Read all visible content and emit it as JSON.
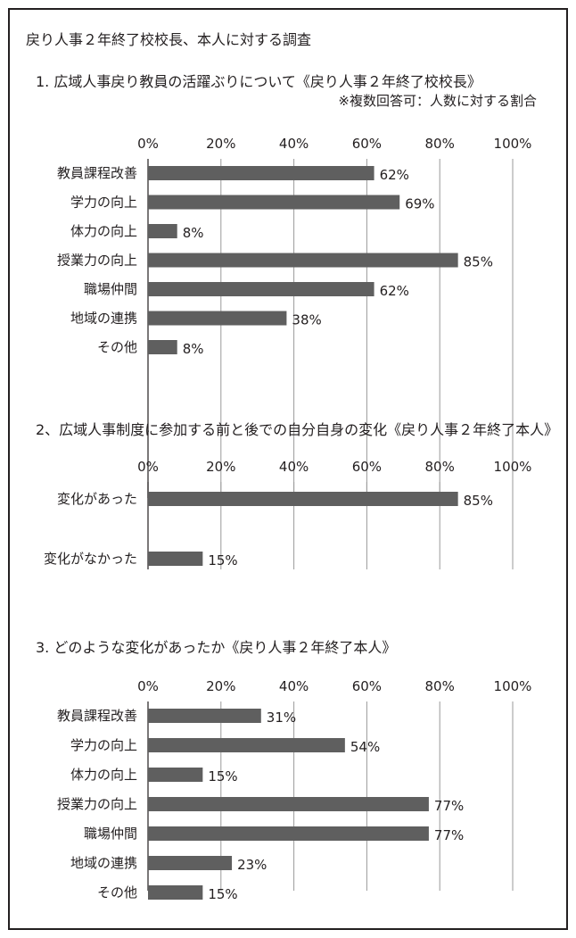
{
  "page_title": "戻り人事２年終了校校長、本人に対する調査",
  "sections": [
    {
      "title": "1. 広域人事戻り教員の活躍ぶりについて《戻り人事２年終了校校長》",
      "note": "※複数回答可：人数に対する割合"
    },
    {
      "title": "2、広域人事制度に参加する前と後での自分自身の変化《戻り人事２年終了本人》"
    },
    {
      "title": "3. どのような変化があったか《戻り人事２年終了本人》"
    }
  ],
  "chart_data": [
    {
      "type": "bar",
      "orientation": "horizontal",
      "x_ticks": [
        "0%",
        "20%",
        "40%",
        "60%",
        "80%",
        "100%"
      ],
      "xlim": [
        0,
        100
      ],
      "categories": [
        "教員課程改善",
        "学力の向上",
        "体力の向上",
        "授業力の向上",
        "職場仲間",
        "地域の連携",
        "その他"
      ],
      "values": [
        62,
        69,
        8,
        85,
        62,
        38,
        8
      ],
      "value_labels": [
        "62%",
        "69%",
        "8%",
        "85%",
        "62%",
        "38%",
        "8%"
      ],
      "bar_color": "#5f5f5f",
      "grid": true
    },
    {
      "type": "bar",
      "orientation": "horizontal",
      "x_ticks": [
        "0%",
        "20%",
        "40%",
        "60%",
        "80%",
        "100%"
      ],
      "xlim": [
        0,
        100
      ],
      "categories": [
        "変化があった",
        "変化がなかった"
      ],
      "values": [
        85,
        15
      ],
      "value_labels": [
        "85%",
        "15%"
      ],
      "bar_color": "#5f5f5f",
      "grid": true
    },
    {
      "type": "bar",
      "orientation": "horizontal",
      "x_ticks": [
        "0%",
        "20%",
        "40%",
        "60%",
        "80%",
        "100%"
      ],
      "xlim": [
        0,
        100
      ],
      "categories": [
        "教員課程改善",
        "学力の向上",
        "体力の向上",
        "授業力の向上",
        "職場仲間",
        "地域の連携",
        "その他"
      ],
      "values": [
        31,
        54,
        15,
        77,
        77,
        23,
        15
      ],
      "value_labels": [
        "31%",
        "54%",
        "15%",
        "77%",
        "77%",
        "23%",
        "15%"
      ],
      "bar_color": "#5f5f5f",
      "grid": true
    }
  ]
}
